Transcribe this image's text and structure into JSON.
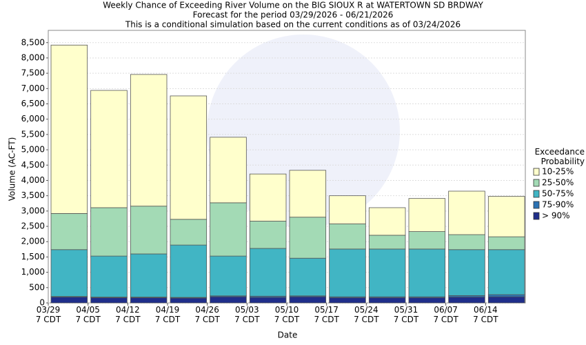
{
  "chart_data": {
    "type": "stacked_bar",
    "title": "Weekly Chance of Exceeding River Volume on the BIG SIOUX R at WATERTOWN SD BRDWAY",
    "subtitles": [
      "Forecast for the period 03/29/2026 - 06/21/2026",
      "This is a conditional simulation based on the current conditions as of 03/24/2026"
    ],
    "x_label": "Date",
    "y_label": "Volume (AC-FT)",
    "legend_title": "Exceedance\nProbability",
    "legend_position": "right",
    "categories": [
      "03/29\n7 CDT",
      "04/05\n7 CDT",
      "04/12\n7 CDT",
      "04/19\n7 CDT",
      "04/26\n7 CDT",
      "05/03\n7 CDT",
      "05/10\n7 CDT",
      "05/17\n7 CDT",
      "05/24\n7 CDT",
      "05/31\n7 CDT",
      "06/07\n7 CDT",
      "06/14\n7 CDT"
    ],
    "series": [
      {
        "name": "> 90%",
        "color": "#1f2e8a",
        "values": [
          190,
          170,
          170,
          160,
          200,
          180,
          200,
          170,
          170,
          170,
          190,
          200
        ]
      },
      {
        "name": "75-90%",
        "color": "#2b72b3",
        "values": [
          20,
          20,
          20,
          20,
          30,
          40,
          30,
          30,
          30,
          30,
          50,
          70
        ]
      },
      {
        "name": "50-75%",
        "color": "#41b5c4",
        "values": [
          1530,
          1340,
          1410,
          1710,
          1300,
          1560,
          1230,
          1560,
          1560,
          1560,
          1500,
          1470
        ]
      },
      {
        "name": "25-50%",
        "color": "#a3dab5",
        "values": [
          1180,
          1580,
          1560,
          840,
          1740,
          890,
          1340,
          820,
          450,
          570,
          490,
          420
        ]
      },
      {
        "name": "10-25%",
        "color": "#ffffcc",
        "values": [
          5500,
          3830,
          4300,
          4030,
          2140,
          1540,
          1530,
          920,
          900,
          1080,
          1420,
          1320
        ]
      }
    ],
    "ylim": [
      0,
      8900
    ],
    "yticks": [
      0,
      500,
      {
        "value": 1000,
        "label": "1,000"
      },
      {
        "value": 1500,
        "label": "1,500"
      },
      {
        "value": 2000,
        "label": "2,000"
      },
      {
        "value": 2500,
        "label": "2,500"
      },
      {
        "value": 3000,
        "label": "3,000"
      },
      {
        "value": 3500,
        "label": "3,500"
      },
      {
        "value": 4000,
        "label": "4,000"
      },
      {
        "value": 4500,
        "label": "4,500"
      },
      {
        "value": 5000,
        "label": "5,000"
      },
      {
        "value": 5500,
        "label": "5,500"
      },
      {
        "value": 6000,
        "label": "6,000"
      },
      {
        "value": 6500,
        "label": "6,500"
      },
      {
        "value": 7000,
        "label": "7,000"
      },
      {
        "value": 7500,
        "label": "7,500"
      },
      {
        "value": 8000,
        "label": "8,000"
      },
      {
        "value": 8500,
        "label": "8,500"
      }
    ],
    "grid": true
  }
}
